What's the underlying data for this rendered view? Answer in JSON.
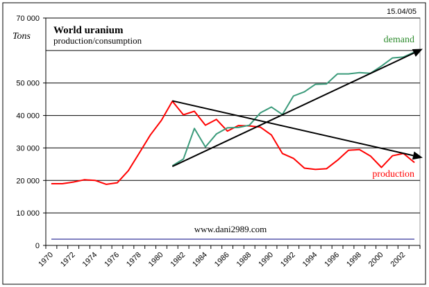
{
  "chart_data": {
    "type": "line",
    "title": "World uranium",
    "subtitle": "production/consumption",
    "date_label": "15.04/05",
    "ylabel": "Tons",
    "xlabel": "",
    "watermark": "www.dani2989.com",
    "ylim": [
      0,
      70000
    ],
    "y_ticks": [
      0,
      10000,
      20000,
      30000,
      40000,
      50000,
      70000
    ],
    "y_tick_labels": [
      "0",
      "10 000",
      "20 000",
      "30 000",
      "40 000",
      "50 000",
      "70 000"
    ],
    "gridlines": [
      10000,
      20000,
      30000,
      40000,
      50000,
      60000,
      70000
    ],
    "grid": true,
    "x": [
      1970,
      1971,
      1972,
      1973,
      1974,
      1975,
      1976,
      1977,
      1978,
      1979,
      1980,
      1981,
      1982,
      1983,
      1984,
      1985,
      1986,
      1987,
      1988,
      1989,
      1990,
      1991,
      1992,
      1993,
      1994,
      1995,
      1996,
      1997,
      1998,
      1999,
      2000,
      2001,
      2002,
      2003
    ],
    "x_tick_labels": [
      "1970",
      "1972",
      "1974",
      "1976",
      "1978",
      "1980",
      "1982",
      "1984",
      "1986",
      "1988",
      "1990",
      "1992",
      "1994",
      "1996",
      "1998",
      "2000",
      "2002"
    ],
    "series": [
      {
        "name": "production",
        "color": "#ff0000",
        "values": [
          19000,
          19000,
          19500,
          20200,
          20000,
          18800,
          19300,
          23000,
          28500,
          34000,
          38500,
          44400,
          40200,
          41300,
          37000,
          38800,
          35200,
          36900,
          36800,
          36400,
          34000,
          28300,
          26800,
          23800,
          23400,
          23600,
          26200,
          29300,
          29500,
          27500,
          24000,
          27600,
          28300,
          25500
        ]
      },
      {
        "name": "demand",
        "color": "#3a9a7a",
        "values": [
          null,
          null,
          null,
          null,
          null,
          null,
          null,
          null,
          null,
          null,
          null,
          24500,
          26600,
          36000,
          30300,
          34300,
          36200,
          36300,
          37000,
          40800,
          42600,
          40300,
          46000,
          47300,
          49600,
          49700,
          52800,
          52800,
          53200,
          53000,
          55200,
          57700,
          58000,
          59500
        ]
      }
    ],
    "trend_arrows": [
      {
        "name": "production-trend",
        "from": [
          1981,
          44500
        ],
        "to": [
          2004,
          27000
        ]
      },
      {
        "name": "demand-trend",
        "from": [
          1981,
          24300
        ],
        "to": [
          2004,
          60500
        ]
      }
    ],
    "legend_labels": {
      "demand": "demand",
      "production": "production"
    },
    "legend_colors": {
      "demand": "#2e8b2e",
      "production": "#ff0000"
    }
  }
}
